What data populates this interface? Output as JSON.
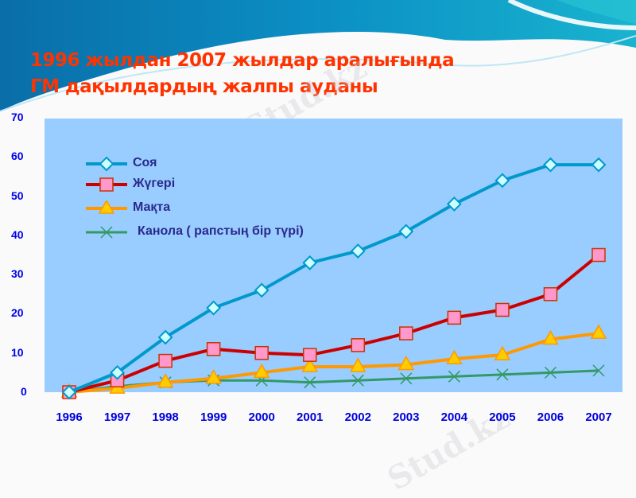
{
  "slide": {
    "title_line1": "1996 жылдан 2007 жылдар аралығында",
    "title_line2": "ГМ дақылдардың жалпы ауданы",
    "watermark": "Stud.kz",
    "colors": {
      "title": "#ff3300",
      "plot_bg": "#99ccff",
      "axis_labels": "#0000ee",
      "legend_text": "#2a2a8c"
    }
  },
  "chart_data": {
    "type": "line",
    "title": "1996 жылдан 2007 жылдар аралығында ГМ дақылдардың жалпы ауданы",
    "xlabel": "",
    "ylabel": "",
    "ylim": [
      0,
      70
    ],
    "yticks": [
      "0",
      "10",
      "20",
      "30",
      "40",
      "50",
      "60",
      "70"
    ],
    "categories": [
      "1996",
      "1997",
      "1998",
      "1999",
      "2000",
      "2001",
      "2002",
      "2003",
      "2004",
      "2005",
      "2006",
      "2007"
    ],
    "grid": false,
    "legend_position": "upper-left inside",
    "series": [
      {
        "name": "Соя",
        "color": "#0099cc",
        "marker": "diamond",
        "values": [
          0,
          5,
          14,
          21.5,
          26,
          33,
          36,
          41,
          48,
          54,
          58,
          58
        ]
      },
      {
        "name": "Жүгері",
        "color": "#cc0000",
        "marker": "square",
        "values": [
          0,
          3,
          8,
          11,
          10,
          9.5,
          12,
          15,
          19,
          21,
          25,
          35
        ]
      },
      {
        "name": "Мақта",
        "color": "#ff9900",
        "marker": "triangle",
        "values": [
          0,
          1,
          2.5,
          3.5,
          5,
          6.5,
          6.5,
          7,
          8.5,
          9.5,
          13.5,
          15
        ]
      },
      {
        "name": "Канола ( рапстың бір түрі)",
        "color": "#339966",
        "marker": "x",
        "values": [
          0,
          1.5,
          2.5,
          3,
          3,
          2.5,
          3,
          3.5,
          4,
          4.5,
          5,
          5.5
        ]
      }
    ]
  }
}
